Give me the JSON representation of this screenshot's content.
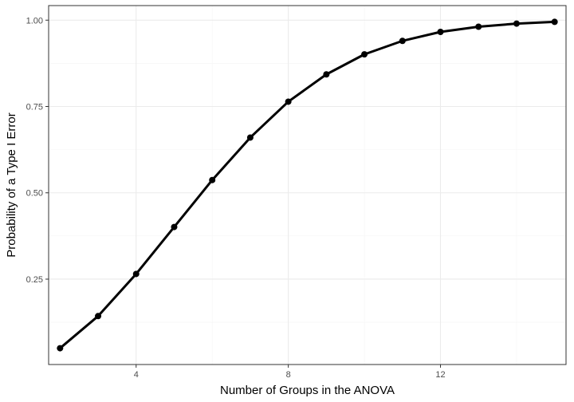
{
  "chart_data": {
    "type": "line",
    "title": "",
    "xlabel": "Number of Groups in the ANOVA",
    "ylabel": "Probability of a Type I Error",
    "x": [
      2,
      3,
      4,
      5,
      6,
      7,
      8,
      9,
      10,
      11,
      12,
      13,
      14,
      15
    ],
    "series": [
      {
        "values": [
          0.05,
          0.143,
          0.265,
          0.401,
          0.537,
          0.66,
          0.764,
          0.843,
          0.901,
          0.94,
          0.966,
          0.981,
          0.99,
          0.995
        ]
      }
    ],
    "xlim": [
      1.7,
      15.3
    ],
    "ylim": [
      0.0028,
      1.0422
    ],
    "x_ticks": [
      4,
      8,
      12
    ],
    "x_tick_labels": [
      "4",
      "8",
      "12"
    ],
    "y_ticks": [
      0.25,
      0.5,
      0.75,
      1.0
    ],
    "y_tick_labels": [
      "0.25",
      "0.50",
      "0.75",
      "1.00"
    ],
    "x_minor_ticks": [
      6,
      10,
      14
    ],
    "y_minor_ticks": [
      0.125,
      0.375,
      0.625,
      0.875
    ],
    "grid": true,
    "legend": "none",
    "colors": {
      "line": "#000000",
      "grid_major": "#ebebeb",
      "grid_minor": "#f5f5f5",
      "panel_border": "#333333",
      "tick_text": "#4d4d4d"
    }
  }
}
